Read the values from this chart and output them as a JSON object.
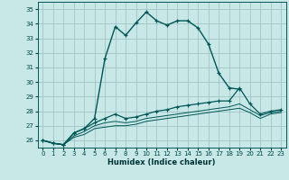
{
  "xlabel": "Humidex (Indice chaleur)",
  "bg_color": "#c8e8e8",
  "grid_color": "#a0c4c4",
  "line_color": "#005555",
  "xlim": [
    -0.5,
    23.5
  ],
  "ylim": [
    25.5,
    35.5
  ],
  "yticks": [
    26,
    27,
    28,
    29,
    30,
    31,
    32,
    33,
    34,
    35
  ],
  "xticks": [
    0,
    1,
    2,
    3,
    4,
    5,
    6,
    7,
    8,
    9,
    10,
    11,
    12,
    13,
    14,
    15,
    16,
    17,
    18,
    19,
    20,
    21,
    22,
    23
  ],
  "s1_x": [
    0,
    1,
    2,
    3,
    4,
    5,
    6,
    7,
    8,
    9,
    10,
    11,
    12,
    13,
    14,
    15,
    16,
    17,
    18,
    19
  ],
  "s1_y": [
    26.0,
    25.8,
    25.7,
    26.5,
    26.8,
    27.5,
    31.6,
    33.8,
    33.2,
    34.05,
    34.8,
    34.2,
    33.9,
    34.2,
    34.2,
    33.7,
    32.6,
    30.6,
    29.6,
    29.5
  ],
  "s2_x": [
    0,
    1,
    2,
    3,
    4,
    5,
    6,
    7,
    8,
    9,
    10,
    11,
    12,
    13,
    14,
    15,
    16,
    17,
    18,
    19,
    20,
    21,
    22,
    23
  ],
  "s2_y": [
    26.0,
    25.8,
    25.7,
    26.5,
    26.8,
    27.2,
    27.5,
    27.8,
    27.5,
    27.6,
    27.8,
    28.0,
    28.1,
    28.3,
    28.4,
    28.5,
    28.6,
    28.7,
    28.7,
    29.6,
    28.5,
    27.8,
    28.0,
    28.1
  ],
  "s3_x": [
    0,
    1,
    2,
    3,
    4,
    5,
    6,
    7,
    8,
    9,
    10,
    11,
    12,
    13,
    14,
    15,
    16,
    17,
    18,
    19,
    20,
    21,
    22,
    23
  ],
  "s3_y": [
    26.0,
    25.8,
    25.7,
    26.3,
    26.6,
    27.0,
    27.2,
    27.3,
    27.2,
    27.3,
    27.5,
    27.6,
    27.7,
    27.8,
    27.9,
    28.0,
    28.1,
    28.2,
    28.3,
    28.5,
    28.1,
    27.7,
    27.9,
    28.0
  ],
  "s4_x": [
    0,
    1,
    2,
    3,
    4,
    5,
    6,
    7,
    8,
    9,
    10,
    11,
    12,
    13,
    14,
    15,
    16,
    17,
    18,
    19,
    20,
    21,
    22,
    23
  ],
  "s4_y": [
    26.0,
    25.8,
    25.7,
    26.2,
    26.4,
    26.8,
    26.9,
    27.0,
    27.0,
    27.1,
    27.3,
    27.4,
    27.5,
    27.6,
    27.7,
    27.8,
    27.9,
    28.0,
    28.1,
    28.2,
    27.9,
    27.5,
    27.8,
    27.9
  ]
}
